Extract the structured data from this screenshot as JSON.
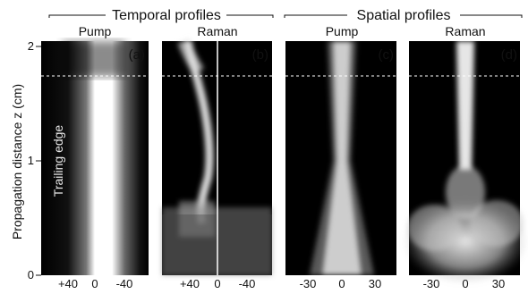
{
  "figure": {
    "group_titles": {
      "temporal": "Temporal profiles",
      "spatial": "Spatial profiles"
    },
    "y_axis": {
      "label": "Propagation distance z (cm)",
      "ticks": [
        "0",
        "1",
        "2"
      ]
    },
    "inner_label": "Trailing edge",
    "panels": [
      {
        "title": "Pump",
        "letter": "(a)",
        "xticks": [
          "+40",
          "0",
          "-40"
        ]
      },
      {
        "title": "Raman",
        "letter": "(b)",
        "xticks": [
          "+40",
          "0",
          "-40"
        ]
      },
      {
        "title": "Pump",
        "letter": "(c)",
        "xticks": [
          "-30",
          "0",
          "30"
        ]
      },
      {
        "title": "Raman",
        "letter": "(d)",
        "xticks": [
          "-30",
          "0",
          "30"
        ]
      }
    ]
  },
  "colors": {
    "background": "#000000",
    "signal": "#ffffff",
    "dashed_line": "#ffffff"
  }
}
